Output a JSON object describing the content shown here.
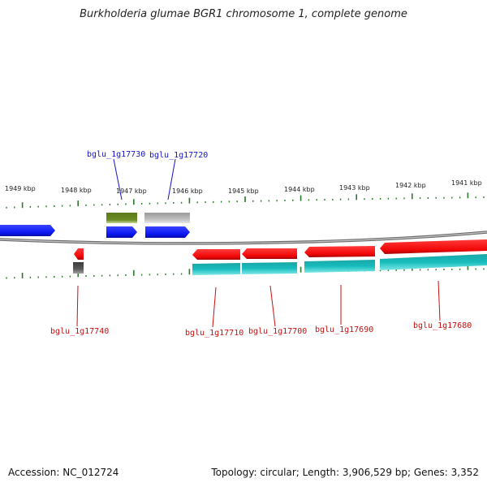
{
  "title": "Burkholderia glumae BGR1 chromosome 1, complete genome",
  "footer": {
    "accession": "Accession: NC_012724",
    "stats": "Topology: circular; Length: 3,906,529 bp; Genes: 3,352"
  },
  "ruler": [
    "1949 kbp",
    "1948 kbp",
    "1947 kbp",
    "1946 kbp",
    "1945 kbp",
    "1944 kbp",
    "1943 kbp",
    "1942 kbp",
    "1941 kbp"
  ],
  "colors": {
    "forward_cds": "#0b16f0",
    "reverse_cds": "#f20808",
    "forward_gene_olive": "#6e8c25",
    "forward_gene_gray": "#bdbdbd",
    "reverse_gene_cyan": "#17bcbc",
    "reverse_gene_dark": "#5a5a5a",
    "backbone": "#8a8a8a",
    "tick": "#2a7a2a",
    "forward_label": "#1414c8",
    "reverse_label": "#c80f0f"
  },
  "genes": [
    {
      "locus": "bglu_1g17730",
      "strand": "+"
    },
    {
      "locus": "bglu_1g17720",
      "strand": "+"
    },
    {
      "locus": "bglu_1g17740",
      "strand": "-"
    },
    {
      "locus": "bglu_1g17710",
      "strand": "-"
    },
    {
      "locus": "bglu_1g17700",
      "strand": "-"
    },
    {
      "locus": "bglu_1g17690",
      "strand": "-"
    },
    {
      "locus": "bglu_1g17680",
      "strand": "-"
    }
  ]
}
